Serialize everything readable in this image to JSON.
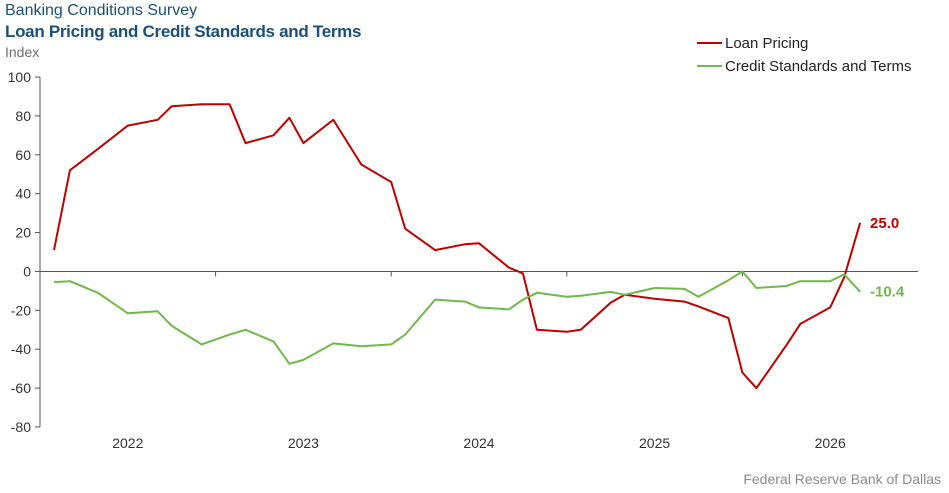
{
  "header": {
    "title": "Banking Conditions Survey",
    "subtitle": "Loan Pricing and Credit Standards and Terms",
    "ylabel": "Index"
  },
  "footer": {
    "source": "Federal Reserve Bank of Dallas"
  },
  "colors": {
    "loan": "#c00000",
    "credit": "#70b84a",
    "axis": "#555555"
  },
  "chart_data": {
    "type": "line",
    "title": "Loan Pricing and Credit Standards and Terms",
    "ylabel": "Index",
    "ylim": [
      -80,
      100
    ],
    "yticks": [
      100,
      80,
      60,
      40,
      20,
      0,
      -20,
      -40,
      -60,
      -80
    ],
    "xlim": [
      2021.5,
      2026.5
    ],
    "xticks": [
      {
        "label": "2022",
        "x": 2022.0
      },
      {
        "label": "2023",
        "x": 2023.0
      },
      {
        "label": "2024",
        "x": 2024.0
      },
      {
        "label": "2025",
        "x": 2025.0
      },
      {
        "label": "2026",
        "x": 2026.0
      }
    ],
    "grid": false,
    "legend_position": "top-right",
    "x": [
      2021.58,
      2021.67,
      2021.75,
      2021.83,
      2021.92,
      2022.0,
      2022.08,
      2022.17,
      2022.25,
      2022.33,
      2022.42,
      2022.5,
      2022.58,
      2022.67,
      2022.75,
      2022.83,
      2022.92,
      2023.0,
      2023.08,
      2023.17,
      2023.25,
      2023.33,
      2023.42,
      2023.5,
      2023.58,
      2023.67,
      2023.75,
      2023.83,
      2023.92,
      2024.0,
      2024.08,
      2024.17,
      2024.25,
      2024.33,
      2024.42,
      2024.5,
      2024.58,
      2024.67,
      2024.75,
      2024.83,
      2024.92,
      2025.0,
      2025.08,
      2025.17,
      2025.25,
      2025.33,
      2025.42,
      2025.5,
      2025.58,
      2025.67,
      2025.75,
      2025.83,
      2025.92,
      2026.0,
      2026.08
    ],
    "series": [
      {
        "name": "Loan Pricing",
        "color": "#c00000",
        "points": [
          [
            2021.58,
            11
          ],
          [
            2021.67,
            52
          ],
          [
            2021.83,
            63
          ],
          [
            2022.0,
            75
          ],
          [
            2022.17,
            78
          ],
          [
            2022.25,
            85
          ],
          [
            2022.42,
            86
          ],
          [
            2022.58,
            86
          ],
          [
            2022.67,
            66
          ],
          [
            2022.83,
            70
          ],
          [
            2022.92,
            79
          ],
          [
            2023.0,
            66
          ],
          [
            2023.17,
            78
          ],
          [
            2023.33,
            55
          ],
          [
            2023.5,
            46
          ],
          [
            2023.58,
            22
          ],
          [
            2023.75,
            11
          ],
          [
            2023.92,
            14
          ],
          [
            2024.0,
            14.5
          ],
          [
            2024.17,
            2
          ],
          [
            2024.25,
            -1
          ],
          [
            2024.33,
            -30
          ],
          [
            2024.5,
            -31
          ],
          [
            2024.58,
            -30
          ],
          [
            2024.75,
            -16
          ],
          [
            2024.83,
            -12
          ],
          [
            2025.0,
            -14
          ],
          [
            2025.17,
            -15.5
          ],
          [
            2025.25,
            -18
          ],
          [
            2025.42,
            -24
          ],
          [
            2025.5,
            -52
          ],
          [
            2025.58,
            -60
          ],
          [
            2025.75,
            -38
          ],
          [
            2025.83,
            -27
          ],
          [
            2026.0,
            -18.5
          ],
          [
            2026.08,
            -3
          ],
          [
            2026.17,
            25
          ]
        ],
        "end_label": "25.0"
      },
      {
        "name": "Credit Standards and Terms",
        "color": "#70b84a",
        "points": [
          [
            2021.58,
            -5.5
          ],
          [
            2021.67,
            -5
          ],
          [
            2021.83,
            -11
          ],
          [
            2022.0,
            -21.5
          ],
          [
            2022.17,
            -20.5
          ],
          [
            2022.25,
            -28
          ],
          [
            2022.42,
            -37.5
          ],
          [
            2022.58,
            -32.5
          ],
          [
            2022.67,
            -30
          ],
          [
            2022.83,
            -36
          ],
          [
            2022.92,
            -47.5
          ],
          [
            2023.0,
            -45.5
          ],
          [
            2023.17,
            -37
          ],
          [
            2023.33,
            -38.5
          ],
          [
            2023.5,
            -37.5
          ],
          [
            2023.58,
            -32.5
          ],
          [
            2023.75,
            -14.5
          ],
          [
            2023.92,
            -15.5
          ],
          [
            2024.0,
            -18.5
          ],
          [
            2024.17,
            -19.5
          ],
          [
            2024.25,
            -14.5
          ],
          [
            2024.33,
            -11
          ],
          [
            2024.5,
            -13
          ],
          [
            2024.58,
            -12.5
          ],
          [
            2024.75,
            -10.5
          ],
          [
            2024.83,
            -12
          ],
          [
            2025.0,
            -8.5
          ],
          [
            2025.17,
            -9
          ],
          [
            2025.25,
            -13
          ],
          [
            2025.42,
            -4.5
          ],
          [
            2025.5,
            0
          ],
          [
            2025.58,
            -8.5
          ],
          [
            2025.75,
            -7.5
          ],
          [
            2025.83,
            -5
          ],
          [
            2026.0,
            -5
          ],
          [
            2026.08,
            -1.5
          ],
          [
            2026.17,
            -10.4
          ]
        ],
        "end_label": "-10.4"
      }
    ]
  }
}
